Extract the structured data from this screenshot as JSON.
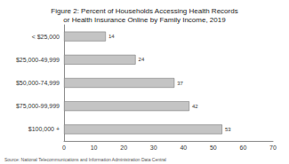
{
  "chart_data": {
    "type": "bar",
    "orientation": "horizontal",
    "title": "Figure 2: Percent of Households Accessing Health Records\nor Health Insurance Online by Family Income, 2019",
    "categories": [
      "< $25,000",
      "$25,000-49,999",
      "$50,000-74,999",
      "$75,000-99,999",
      "$100,000 +"
    ],
    "values": [
      14,
      24,
      37,
      42,
      53
    ],
    "color": "#c4c4c4",
    "xlim": [
      0,
      70
    ],
    "xticks": [
      0,
      10,
      20,
      30,
      40,
      50,
      60,
      70
    ],
    "grid": false,
    "data_labels": true,
    "annotations": [
      "Source: National Telecommunications and Information Administration Data Central"
    ]
  }
}
